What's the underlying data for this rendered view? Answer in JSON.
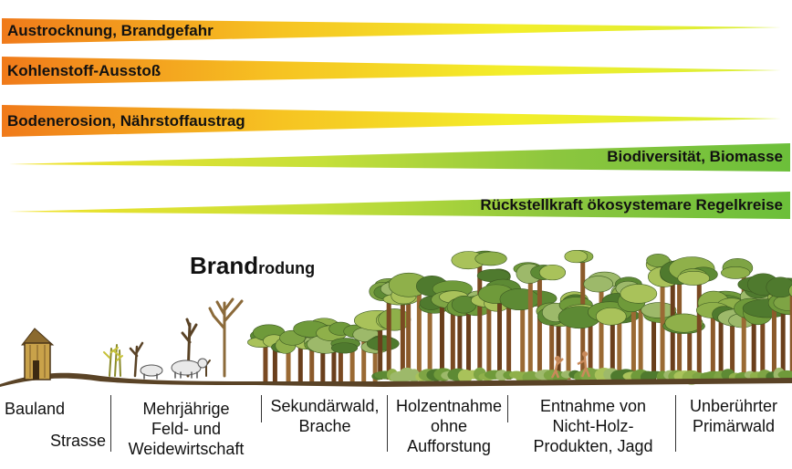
{
  "gradients": {
    "decreasing": [
      "#f07a1a",
      "#f6c222",
      "#f3ee2a",
      "#d8ee3a"
    ],
    "increasing": [
      "#f3e22a",
      "#c6e03a",
      "#8cc63e",
      "#6cbf3a"
    ]
  },
  "bars": [
    {
      "label": "Austrocknung, Brandgefahr",
      "direction": "decreasing"
    },
    {
      "label": "Kohlenstoff-Ausstoß",
      "direction": "decreasing"
    },
    {
      "label": "Bodenerosion, Nährstoffaustrag",
      "direction": "decreasing"
    },
    {
      "label": "Biodiversität, Biomasse",
      "direction": "increasing"
    },
    {
      "label": "Rückstellkraft ökosystemare Regelkreise",
      "direction": "increasing"
    }
  ],
  "title": {
    "strong": "Brand",
    "rest": "rodung"
  },
  "stages": {
    "bauland": "Bauland",
    "strasse": "Strasse",
    "feld": [
      "Mehrjährige",
      "Feld- und",
      "Weidewirtschaft"
    ],
    "sekundaer": [
      "Sekundärwald,",
      "Brache"
    ],
    "holz": [
      "Holzentnahme",
      "ohne",
      "Aufforstung"
    ],
    "nichtholz": [
      "Entnahme von",
      "Nicht-Holz-",
      "Produkten, Jagd"
    ],
    "primaer": [
      "Unberührter",
      "Primärwald"
    ]
  }
}
